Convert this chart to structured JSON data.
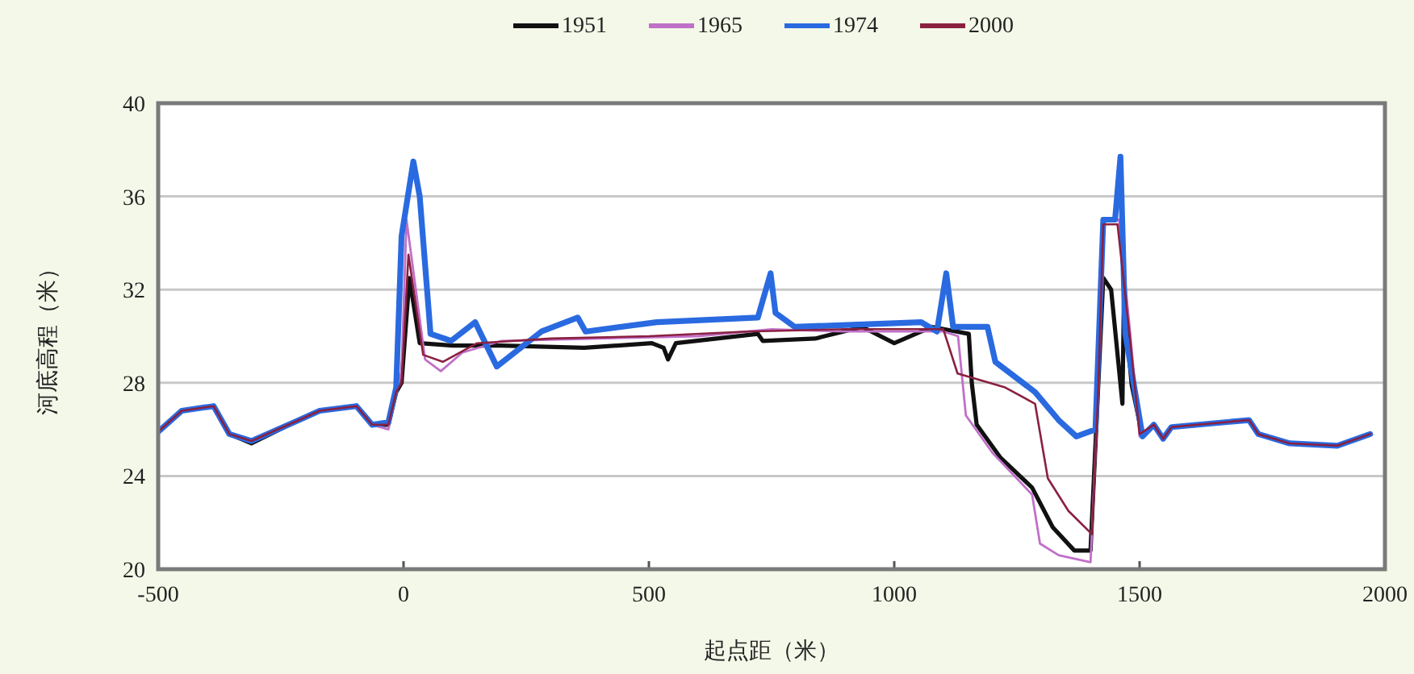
{
  "chart_data": {
    "type": "line",
    "xlabel": "起点距（米）",
    "ylabel": "河底高程（米）",
    "xlim": [
      -500,
      2000
    ],
    "xticks": [
      -500,
      0,
      500,
      1000,
      1500,
      2000
    ],
    "ylim": [
      20,
      40
    ],
    "yticks": [
      20,
      24,
      28,
      32,
      36,
      40
    ],
    "grid": "y",
    "legend": "top",
    "series": [
      {
        "name": "1951",
        "color": "#111111",
        "x": [
          -500,
          -452,
          -387,
          -355,
          -310,
          -213,
          -171,
          -96,
          -64,
          -31,
          -15,
          -4,
          12,
          33,
          100,
          200,
          368,
          506,
          530,
          539,
          555,
          722,
          732,
          839,
          935,
          1000,
          1077,
          1152,
          1158,
          1168,
          1216,
          1281,
          1323,
          1367,
          1400,
          1426,
          1442,
          1465,
          1468,
          1484,
          1506,
          1529
        ],
        "values": [
          25.9,
          26.8,
          27.0,
          25.8,
          25.4,
          26.4,
          26.8,
          27.0,
          26.2,
          26.2,
          27.6,
          28.0,
          32.5,
          29.7,
          29.6,
          29.6,
          29.5,
          29.7,
          29.5,
          29.0,
          29.7,
          30.1,
          29.8,
          29.9,
          30.4,
          29.7,
          30.4,
          30.1,
          28.0,
          26.2,
          24.8,
          23.5,
          21.8,
          20.8,
          20.8,
          32.5,
          32.0,
          27.1,
          31.5,
          27.9,
          25.7,
          26.2
        ]
      },
      {
        "name": "1965",
        "color": "#c070c8",
        "x": [
          -355,
          -310,
          -213,
          -171,
          -96,
          -64,
          -31,
          -15,
          -4,
          6,
          44,
          76,
          120,
          200,
          400,
          600,
          750,
          900,
          1100,
          1130,
          1146,
          1200,
          1281,
          1297,
          1335,
          1400,
          1416,
          1426,
          1458,
          1481,
          1500
        ],
        "values": [
          25.8,
          25.5,
          26.4,
          26.8,
          27.0,
          26.2,
          26.0,
          27.5,
          28.5,
          35.0,
          29.0,
          28.5,
          29.3,
          29.8,
          29.9,
          30.0,
          30.3,
          30.2,
          30.2,
          30.0,
          26.6,
          25.0,
          23.2,
          21.1,
          20.6,
          20.3,
          27.8,
          35.0,
          35.0,
          30.1,
          25.7
        ]
      },
      {
        "name": "1974",
        "color": "#2a6ae0",
        "x": [
          -500,
          -452,
          -387,
          -355,
          -310,
          -213,
          -171,
          -96,
          -64,
          -31,
          -15,
          -4,
          20,
          33,
          55,
          97,
          146,
          190,
          281,
          355,
          371,
          516,
          722,
          748,
          758,
          797,
          1055,
          1087,
          1106,
          1120,
          1190,
          1206,
          1287,
          1335,
          1371,
          1410,
          1426,
          1450,
          1461,
          1471,
          1506,
          1529,
          1548,
          1565,
          1723,
          1742,
          1806,
          1903,
          1970
        ],
        "values": [
          25.9,
          26.8,
          27.0,
          25.8,
          25.5,
          26.4,
          26.8,
          27.0,
          26.2,
          26.3,
          27.8,
          34.3,
          37.5,
          36.0,
          30.1,
          29.8,
          30.6,
          28.7,
          30.2,
          30.8,
          30.2,
          30.6,
          30.8,
          32.7,
          31.0,
          30.4,
          30.6,
          30.2,
          32.7,
          30.4,
          30.4,
          28.9,
          27.6,
          26.4,
          25.7,
          26.0,
          35.0,
          35.0,
          37.7,
          30.1,
          25.7,
          26.2,
          25.6,
          26.1,
          26.4,
          25.8,
          25.4,
          25.3,
          25.8
        ]
      },
      {
        "name": "2000",
        "color": "#8a2040",
        "x": [
          -500,
          -452,
          -387,
          -355,
          -310,
          -213,
          -171,
          -96,
          -64,
          -31,
          -15,
          -4,
          10,
          40,
          80,
          150,
          300,
          500,
          700,
          900,
          1100,
          1129,
          1226,
          1287,
          1313,
          1355,
          1403,
          1416,
          1426,
          1455,
          1480,
          1500,
          1529,
          1548,
          1565,
          1723,
          1742,
          1806,
          1903,
          1970
        ],
        "values": [
          25.9,
          26.8,
          27.0,
          25.8,
          25.5,
          26.4,
          26.8,
          27.0,
          26.2,
          26.2,
          27.6,
          28.0,
          33.5,
          29.2,
          28.9,
          29.7,
          29.9,
          30.0,
          30.2,
          30.3,
          30.3,
          28.4,
          27.8,
          27.1,
          23.9,
          22.5,
          21.5,
          27.8,
          34.8,
          34.8,
          30.0,
          25.8,
          26.2,
          25.6,
          26.1,
          26.4,
          25.8,
          25.4,
          25.3,
          25.8
        ]
      }
    ]
  }
}
